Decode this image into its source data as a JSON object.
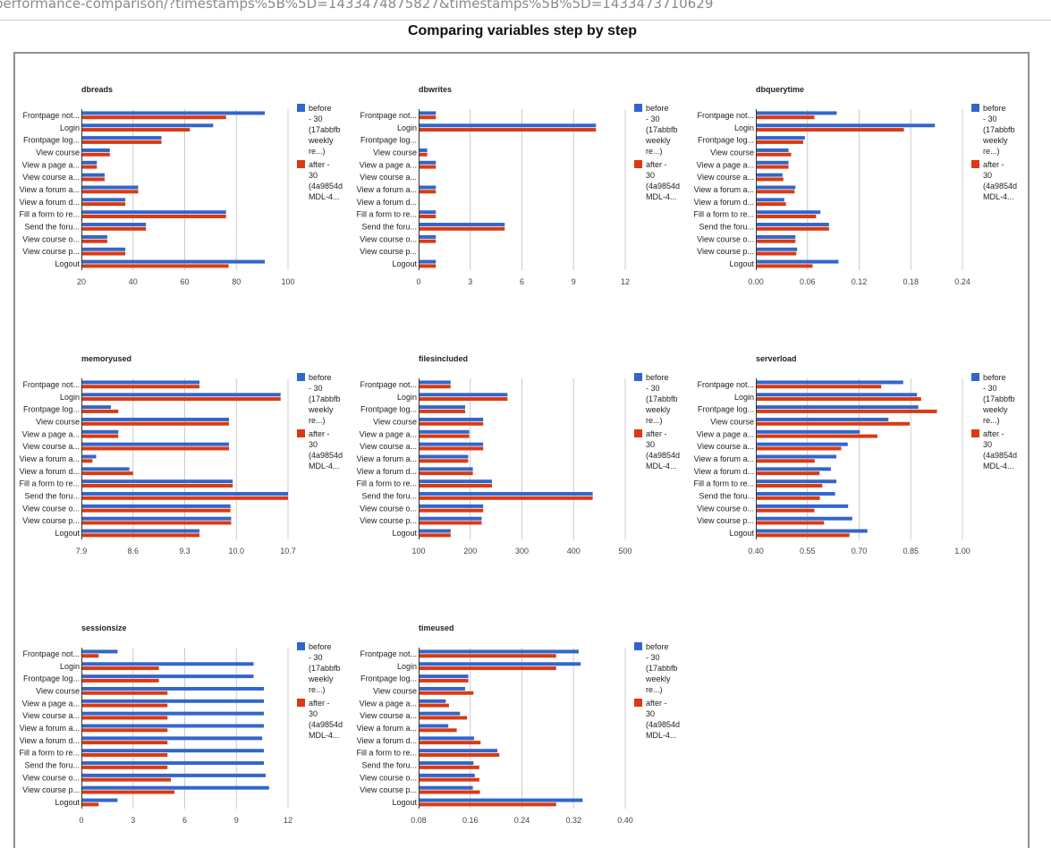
{
  "page": {
    "url": "performance-comparison/?timestamps%5B%5D=1433474875827&timestamps%5B%5D=1433473710629",
    "title": "Comparing variables step by step"
  },
  "colors": {
    "before": "#3366cc",
    "after": "#dc3912",
    "grid": "#cccccc",
    "axis": "#333333"
  },
  "chart_data": [
    {
      "type": "bar",
      "orientation": "horizontal",
      "title": "dbreads",
      "categories": [
        "Frontpage not...",
        "Login",
        "Frontpage log...",
        "View course",
        "View a page a...",
        "View course a...",
        "View a forum a...",
        "View a forum d...",
        "Fill a form to re...",
        "Send the foru...",
        "View course o...",
        "View course p...",
        "Logout"
      ],
      "xlim": [
        20,
        100
      ],
      "ticks": [
        "20",
        "40",
        "60",
        "80",
        "100"
      ],
      "grid": true,
      "legend": "right",
      "series": [
        {
          "name": "before - 30 (17abbfb weekly re...)",
          "values": [
            91,
            71,
            51,
            31,
            26,
            29,
            42,
            37,
            76,
            45,
            30,
            37,
            91
          ]
        },
        {
          "name": "after - 30 (4a9854d MDL-4...",
          "values": [
            76,
            62,
            51,
            31,
            26,
            29,
            42,
            37,
            76,
            45,
            30,
            37,
            77
          ]
        }
      ]
    },
    {
      "type": "bar",
      "orientation": "horizontal",
      "title": "dbwrites",
      "categories": [
        "Frontpage not...",
        "Login",
        "Frontpage log...",
        "View course",
        "View a page a...",
        "View course a...",
        "View a forum a...",
        "View a forum d...",
        "Fill a form to re...",
        "Send the foru...",
        "View course o...",
        "View course p...",
        "Logout"
      ],
      "xlim": [
        0,
        12
      ],
      "ticks": [
        "0",
        "3",
        "6",
        "9",
        "12"
      ],
      "grid": true,
      "legend": "right",
      "series": [
        {
          "name": "before - 30 (17abbfb weekly re...)",
          "values": [
            1,
            10.3,
            0,
            0.5,
            1,
            0,
            1,
            0,
            1,
            5,
            1,
            0,
            1
          ]
        },
        {
          "name": "after - 30 (4a9854d MDL-4...",
          "values": [
            1,
            10.3,
            0,
            0.5,
            1,
            0,
            1,
            0,
            1,
            5,
            1,
            0,
            1
          ]
        }
      ]
    },
    {
      "type": "bar",
      "orientation": "horizontal",
      "title": "dbquerytime",
      "categories": [
        "Frontpage not...",
        "Login",
        "Frontpage log...",
        "View course",
        "View a page a...",
        "View course a...",
        "View a forum a...",
        "View a forum d...",
        "Fill a form to re...",
        "Send the foru...",
        "View course o...",
        "View course p...",
        "Logout"
      ],
      "xlim": [
        0,
        0.24
      ],
      "ticks": [
        "0.00",
        "0.06",
        "0.12",
        "0.18",
        "0.24"
      ],
      "grid": true,
      "legend": "right",
      "series": [
        {
          "name": "before - 30 (17abbfb weekly re...)",
          "values": [
            0.094,
            0.208,
            0.057,
            0.038,
            0.038,
            0.031,
            0.046,
            0.033,
            0.075,
            0.085,
            0.046,
            0.048,
            0.096
          ]
        },
        {
          "name": "after - 30 (4a9854d MDL-4...",
          "values": [
            0.068,
            0.172,
            0.055,
            0.041,
            0.038,
            0.032,
            0.045,
            0.035,
            0.07,
            0.085,
            0.046,
            0.047,
            0.066
          ]
        }
      ]
    },
    {
      "type": "bar",
      "orientation": "horizontal",
      "title": "memoryused",
      "categories": [
        "Frontpage not...",
        "Login",
        "Frontpage log...",
        "View course",
        "View a page a...",
        "View course a...",
        "View a forum a...",
        "View a forum d...",
        "Fill a form to re...",
        "Send the foru...",
        "View course o...",
        "View course p...",
        "Logout"
      ],
      "xlim": [
        7.9,
        10.7
      ],
      "ticks": [
        "7.9",
        "8.6",
        "9.3",
        "10.0",
        "10.7"
      ],
      "grid": true,
      "legend": "right",
      "series": [
        {
          "name": "before - 30 (17abbfb weekly re...)",
          "values": [
            9.5,
            10.6,
            8.3,
            9.9,
            8.4,
            9.9,
            8.1,
            8.55,
            9.95,
            10.7,
            9.92,
            9.93,
            9.5
          ]
        },
        {
          "name": "after - 30 (4a9854d MDL-4...",
          "values": [
            9.5,
            10.6,
            8.4,
            9.9,
            8.4,
            9.9,
            8.05,
            8.6,
            9.95,
            10.7,
            9.92,
            9.93,
            9.5
          ]
        }
      ]
    },
    {
      "type": "bar",
      "orientation": "horizontal",
      "title": "filesincluded",
      "categories": [
        "Frontpage not...",
        "Login",
        "Frontpage log...",
        "View course",
        "View a page a...",
        "View course a...",
        "View a forum a...",
        "View a forum d...",
        "Fill a form to re...",
        "Send the foru...",
        "View course o...",
        "View course p...",
        "Logout"
      ],
      "xlim": [
        100,
        500
      ],
      "ticks": [
        "100",
        "200",
        "300",
        "400",
        "500"
      ],
      "grid": true,
      "legend": "right",
      "series": [
        {
          "name": "before - 30 (17abbfb weekly re...)",
          "values": [
            162,
            272,
            190,
            225,
            198,
            225,
            196,
            205,
            242,
            437,
            225,
            222,
            162
          ]
        },
        {
          "name": "after - 30 (4a9854d MDL-4...",
          "values": [
            162,
            272,
            190,
            225,
            198,
            225,
            196,
            205,
            242,
            437,
            225,
            222,
            162
          ]
        }
      ]
    },
    {
      "type": "bar",
      "orientation": "horizontal",
      "title": "serverload",
      "categories": [
        "Frontpage not...",
        "Login",
        "Frontpage log...",
        "View course",
        "View a page a...",
        "View course a...",
        "View a forum a...",
        "View a forum d...",
        "Fill a form to re...",
        "Send the foru...",
        "View course o...",
        "View course p...",
        "Logout"
      ],
      "xlim": [
        0.4,
        1.0
      ],
      "ticks": [
        "0.40",
        "0.55",
        "0.70",
        "0.85",
        "1.00"
      ],
      "grid": true,
      "legend": "right",
      "series": [
        {
          "name": "before - 30 (17abbfb weekly re...)",
          "values": [
            0.828,
            0.868,
            0.872,
            0.785,
            0.702,
            0.667,
            0.634,
            0.618,
            0.634,
            0.63,
            0.668,
            0.68,
            0.724
          ]
        },
        {
          "name": "after - 30 (4a9854d MDL-4...",
          "values": [
            0.764,
            0.88,
            0.926,
            0.847,
            0.753,
            0.648,
            0.571,
            0.585,
            0.593,
            0.586,
            0.57,
            0.598,
            0.672
          ]
        }
      ]
    },
    {
      "type": "bar",
      "orientation": "horizontal",
      "title": "sessionsize",
      "categories": [
        "Frontpage not...",
        "Login",
        "Frontpage log...",
        "View course",
        "View a page a...",
        "View course a...",
        "View a forum a...",
        "View a forum d...",
        "Fill a form to re...",
        "Send the foru...",
        "View course o...",
        "View course p...",
        "Logout"
      ],
      "xlim": [
        0,
        12
      ],
      "ticks": [
        "0",
        "3",
        "6",
        "9",
        "12"
      ],
      "grid": true,
      "legend": "right",
      "series": [
        {
          "name": "before - 30 (17abbfb weekly re...)",
          "values": [
            2.1,
            10.0,
            10.0,
            10.6,
            10.6,
            10.6,
            10.6,
            10.5,
            10.6,
            10.6,
            10.7,
            10.9,
            2.1
          ]
        },
        {
          "name": "after - 30 (4a9854d MDL-4...",
          "values": [
            1.0,
            4.5,
            4.5,
            5.0,
            5.0,
            5.0,
            5.0,
            5.0,
            5.0,
            5.0,
            5.2,
            5.4,
            1.0
          ]
        }
      ]
    },
    {
      "type": "bar",
      "orientation": "horizontal",
      "title": "timeused",
      "categories": [
        "Frontpage not...",
        "Login",
        "Frontpage log...",
        "View course",
        "View a page a...",
        "View course a...",
        "View a forum a...",
        "View a forum d...",
        "Fill a form to re...",
        "Send the foru...",
        "View course o...",
        "View course p...",
        "Logout"
      ],
      "xlim": [
        0.08,
        0.4
      ],
      "ticks": [
        "0.08",
        "0.16",
        "0.24",
        "0.32",
        "0.40"
      ],
      "grid": true,
      "legend": "right",
      "series": [
        {
          "name": "before - 30 (17abbfb weekly re...)",
          "values": [
            0.328,
            0.331,
            0.157,
            0.152,
            0.122,
            0.144,
            0.126,
            0.166,
            0.202,
            0.165,
            0.167,
            0.164,
            0.334
          ]
        },
        {
          "name": "after - 30 (4a9854d MDL-4...",
          "values": [
            0.293,
            0.293,
            0.157,
            0.165,
            0.127,
            0.155,
            0.139,
            0.176,
            0.205,
            0.174,
            0.174,
            0.175,
            0.293
          ]
        }
      ]
    }
  ]
}
